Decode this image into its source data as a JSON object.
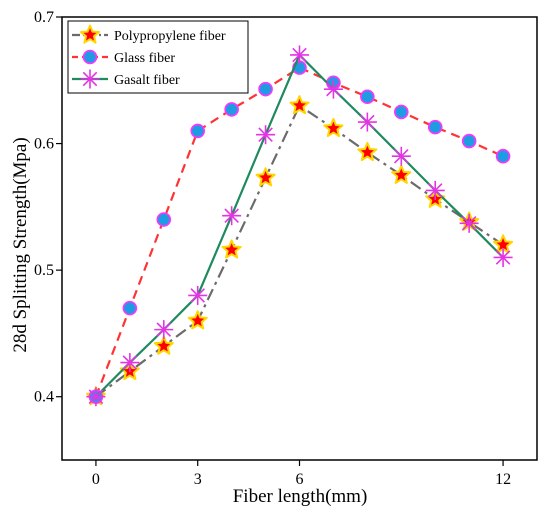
{
  "chart_data": {
    "type": "line",
    "xlabel": "Fiber length(mm)",
    "ylabel": "28d Splitting Strength(Mpa)",
    "xlim": [
      -1,
      13
    ],
    "ylim": [
      0.35,
      0.7
    ],
    "xticks": [
      "0",
      "3",
      "6",
      "12"
    ],
    "yticks": [
      "0.4",
      "0.5",
      "0.6",
      "0.7"
    ],
    "legend_position": "top-left",
    "series": [
      {
        "name": "Polypropylene fiber",
        "color": "#6b6b6b",
        "marker": "star",
        "marker_fill": "#ff0000",
        "marker_edge": "#ffd700",
        "line_style": "dashdot",
        "x": [
          0,
          1,
          2,
          3,
          4,
          5,
          6,
          7,
          8,
          9,
          10,
          11,
          12
        ],
        "y": [
          0.4,
          0.42,
          0.44,
          0.46,
          0.516,
          0.573,
          0.63,
          0.612,
          0.593,
          0.575,
          0.556,
          0.538,
          0.52
        ]
      },
      {
        "name": "Glass fiber",
        "color": "#ff3333",
        "marker": "circle",
        "marker_fill": "#1f9be3",
        "marker_edge": "#ff33ff",
        "line_style": "dashed",
        "x": [
          0,
          1,
          2,
          3,
          4,
          5,
          6,
          7,
          8,
          9,
          10,
          11,
          12
        ],
        "y": [
          0.4,
          0.47,
          0.54,
          0.61,
          0.627,
          0.643,
          0.66,
          0.648,
          0.637,
          0.625,
          0.613,
          0.602,
          0.59
        ]
      },
      {
        "name": "Gasalt fiber",
        "color": "#1e8a5e",
        "marker": "asterisk",
        "marker_fill": "none",
        "marker_edge": "#e633e6",
        "line_style": "solid",
        "x": [
          0,
          1,
          2,
          3,
          4,
          5,
          6,
          7,
          8,
          9,
          10,
          11,
          12
        ],
        "y": [
          0.4,
          0.427,
          0.453,
          0.48,
          0.543,
          0.607,
          0.67,
          0.643,
          0.617,
          0.59,
          0.563,
          0.537,
          0.51
        ]
      }
    ]
  }
}
